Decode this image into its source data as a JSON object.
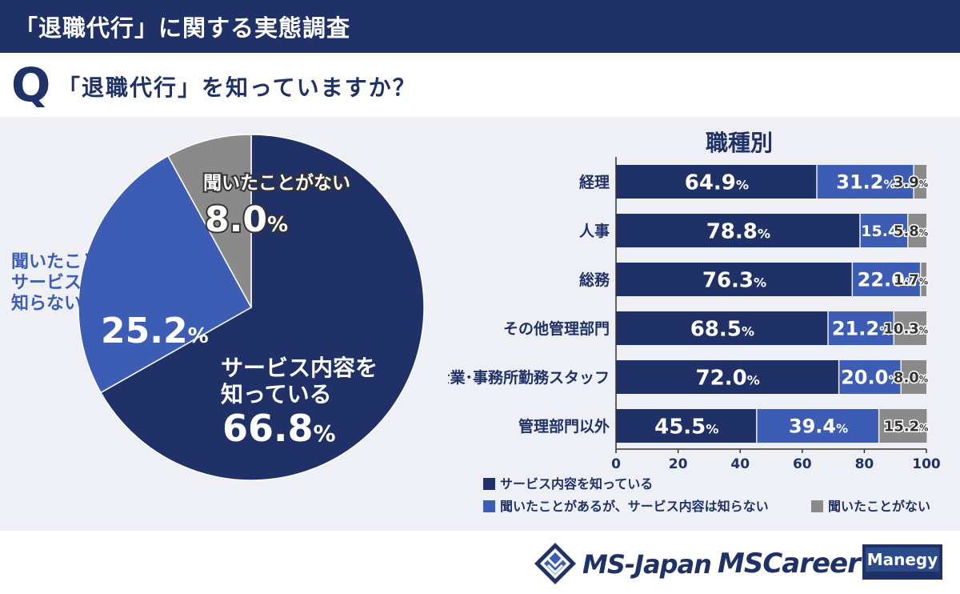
{
  "header": {
    "title": "「退職代行」に関する実態調査"
  },
  "question": {
    "mark": "Q",
    "text": "「退職代行」を知っていますか？"
  },
  "colors": {
    "known": "#1f3166",
    "heard": "#3d5db5",
    "never": "#8a8a8a",
    "header": "#1f3166",
    "panel": "#eef0f5"
  },
  "chart_data": [
    {
      "type": "pie",
      "title": "",
      "slices": [
        {
          "name": "サービス内容を知っている",
          "label_lines": [
            "サービス内容を",
            "知っている"
          ],
          "value": 66.8,
          "value_text": "66.8",
          "color": "#1f3166"
        },
        {
          "name": "聞いたことがあるが、サービス内容は知らない",
          "label_lines": [
            "聞いたことがあるが、",
            "サービス内容は",
            "知らない"
          ],
          "value": 25.2,
          "value_text": "25.2",
          "color": "#3d5db5"
        },
        {
          "name": "聞いたことがない",
          "label_lines": [
            "聞いたことがない"
          ],
          "value": 8.0,
          "value_text": "8.0",
          "color": "#8a8a8a"
        }
      ],
      "unit": "%"
    },
    {
      "type": "bar",
      "orientation": "horizontal",
      "stacked": true,
      "title": "職種別",
      "categories": [
        "経理",
        "人事",
        "総務",
        "その他管理部門",
        "士業･事務所勤務スタッフ",
        "管理部門以外"
      ],
      "series": [
        {
          "name": "サービス内容を知っている",
          "color": "#1f3166",
          "values": [
            64.9,
            78.8,
            76.3,
            68.5,
            72.0,
            45.5
          ],
          "labels": [
            "64.9",
            "78.8",
            "76.3",
            "68.5",
            "72.0",
            "45.5"
          ]
        },
        {
          "name": "聞いたことがあるが、サービス内容は知らない",
          "color": "#3d5db5",
          "values": [
            31.2,
            15.4,
            22.0,
            21.2,
            20.0,
            39.4
          ],
          "labels": [
            "31.2",
            "15.4",
            "22.0",
            "21.2",
            "20.0",
            "39.4"
          ]
        },
        {
          "name": "聞いたことがない",
          "color": "#8a8a8a",
          "values": [
            3.9,
            5.8,
            1.7,
            10.3,
            8.0,
            15.2
          ],
          "labels": [
            "3.9",
            "5.8",
            "1.7",
            "10.3",
            "8.0",
            "15.2"
          ]
        }
      ],
      "xlim": [
        0,
        100
      ],
      "xticks": [
        "0",
        "20",
        "40",
        "60",
        "80",
        "100"
      ],
      "unit": "%",
      "legend": {
        "position": "bottom"
      }
    }
  ],
  "footer": {
    "logo1": "MS-Japan",
    "logo2": "MSCareer",
    "logo3": "Manegy"
  }
}
